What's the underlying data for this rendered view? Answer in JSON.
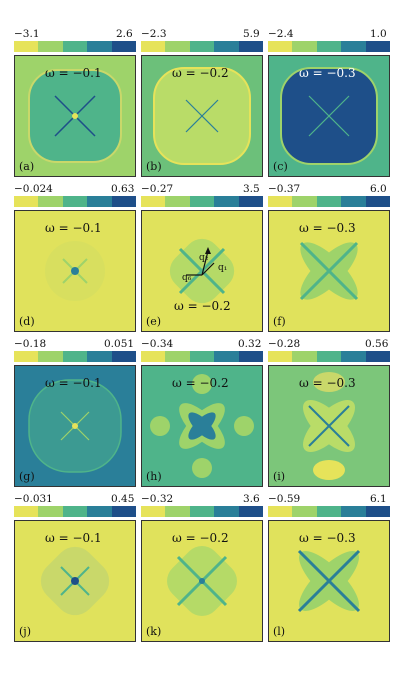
{
  "colors": [
    "#e6e35a",
    "#9ed36a",
    "#4fb48a",
    "#2a7f99",
    "#1e4f89"
  ],
  "rows": [
    {
      "cbars": [
        {
          "min": "−3.1",
          "max": "2.6"
        },
        {
          "min": "−2.3",
          "max": "5.9"
        },
        {
          "min": "−2.4",
          "max": "1.0"
        }
      ],
      "panels": [
        {
          "tag": "(a)",
          "omega": "ω = −0.1"
        },
        {
          "tag": "(b)",
          "omega": "ω = −0.2"
        },
        {
          "tag": "(c)",
          "omega": "ω = −0.3"
        }
      ]
    },
    {
      "cbars": [
        {
          "min": "−0.024",
          "max": "0.63"
        },
        {
          "min": "−0.27",
          "max": "3.5"
        },
        {
          "min": "−0.37",
          "max": "6.0"
        }
      ],
      "panels": [
        {
          "tag": "(d)",
          "omega": "ω = −0.1"
        },
        {
          "tag": "(e)",
          "omega": "ω = −0.2"
        },
        {
          "tag": "(f)",
          "omega": "ω = −0.3"
        }
      ]
    },
    {
      "cbars": [
        {
          "min": "−0.18",
          "max": "0.051"
        },
        {
          "min": "−0.34",
          "max": "0.32"
        },
        {
          "min": "−0.28",
          "max": "0.56"
        }
      ],
      "panels": [
        {
          "tag": "(g)",
          "omega": "ω = −0.1"
        },
        {
          "tag": "(h)",
          "omega": "ω = −0.2"
        },
        {
          "tag": "(i)",
          "omega": "ω = −0.3"
        }
      ]
    },
    {
      "cbars": [
        {
          "min": "−0.031",
          "max": "0.45"
        },
        {
          "min": "−0.32",
          "max": "3.6"
        },
        {
          "min": "−0.59",
          "max": "6.1"
        }
      ],
      "panels": [
        {
          "tag": "(j)",
          "omega": "ω = −0.1"
        },
        {
          "tag": "(k)",
          "omega": "ω = −0.2"
        },
        {
          "tag": "(l)",
          "omega": "ω = −0.3"
        }
      ]
    }
  ],
  "q_labels": {
    "q1": "q₁",
    "q2": "q₂",
    "q6": "q₆"
  }
}
